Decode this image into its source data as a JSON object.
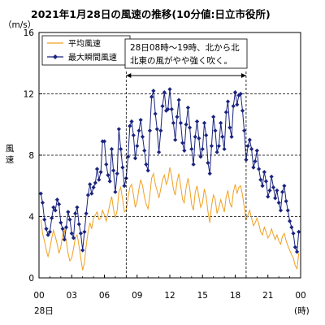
{
  "chart_data": {
    "type": "line",
    "title": "2021年1月28日の風速の推移(10分値:日立市役所)",
    "y_unit": "（m/s）",
    "ylabel": "風速",
    "x_unit": "(時)",
    "date_label": "28日",
    "ylim": [
      0,
      16
    ],
    "y_ticks": [
      0,
      4,
      8,
      12,
      16
    ],
    "x_range_hours": [
      0,
      24
    ],
    "x_ticks": [
      {
        "label": "00",
        "hour": 0
      },
      {
        "label": "03",
        "hour": 3
      },
      {
        "label": "06",
        "hour": 6
      },
      {
        "label": "09",
        "hour": 9
      },
      {
        "label": "12",
        "hour": 12
      },
      {
        "label": "15",
        "hour": 15
      },
      {
        "label": "18",
        "hour": 18
      },
      {
        "label": "21",
        "hour": 21
      },
      {
        "label": "00",
        "hour": 24
      }
    ],
    "gridlines_y": [
      4,
      8,
      12
    ],
    "grid_style": "dashed",
    "legend_position": "top-left",
    "series": [
      {
        "name": "平均風速",
        "color": "#f0a020",
        "marker": "none",
        "x": [
          0.17,
          0.33,
          0.5,
          0.67,
          0.83,
          1.0,
          1.17,
          1.33,
          1.5,
          1.67,
          1.83,
          2.0,
          2.17,
          2.33,
          2.5,
          2.67,
          2.83,
          3.0,
          3.17,
          3.33,
          3.5,
          3.67,
          3.83,
          4.0,
          4.17,
          4.33,
          4.5,
          4.67,
          4.83,
          5.0,
          5.17,
          5.33,
          5.5,
          5.67,
          5.83,
          6.0,
          6.17,
          6.33,
          6.5,
          6.67,
          6.83,
          7.0,
          7.17,
          7.33,
          7.5,
          7.67,
          7.83,
          8.0,
          8.17,
          8.33,
          8.5,
          8.67,
          8.83,
          9.0,
          9.17,
          9.33,
          9.5,
          9.67,
          9.83,
          10.0,
          10.17,
          10.33,
          10.5,
          10.67,
          10.83,
          11.0,
          11.17,
          11.33,
          11.5,
          11.67,
          11.83,
          12.0,
          12.17,
          12.33,
          12.5,
          12.67,
          12.83,
          13.0,
          13.17,
          13.33,
          13.5,
          13.67,
          13.83,
          14.0,
          14.17,
          14.33,
          14.5,
          14.67,
          14.83,
          15.0,
          15.17,
          15.33,
          15.5,
          15.67,
          15.83,
          16.0,
          16.17,
          16.33,
          16.5,
          16.67,
          16.83,
          17.0,
          17.17,
          17.33,
          17.5,
          17.67,
          17.83,
          18.0,
          18.17,
          18.33,
          18.5,
          18.67,
          18.83,
          19.0,
          19.17,
          19.33,
          19.5,
          19.67,
          19.83,
          20.0,
          20.17,
          20.33,
          20.5,
          20.67,
          20.83,
          21.0,
          21.17,
          21.33,
          21.5,
          21.67,
          21.83,
          22.0,
          22.17,
          22.33,
          22.5,
          22.67,
          22.83,
          23.0,
          23.17,
          23.33,
          23.5,
          23.67,
          23.83
        ],
        "values": [
          3.8,
          2.9,
          2.4,
          1.8,
          1.4,
          1.9,
          2.6,
          3.1,
          2.7,
          2.2,
          1.6,
          2.0,
          2.8,
          3.1,
          2.4,
          1.6,
          1.1,
          1.3,
          1.9,
          2.6,
          2.8,
          2.1,
          1.3,
          0.5,
          1.0,
          2.1,
          3.0,
          3.6,
          3.2,
          3.9,
          4.1,
          4.3,
          3.8,
          3.9,
          4.4,
          4.1,
          3.7,
          4.2,
          4.8,
          5.3,
          4.5,
          3.9,
          4.4,
          5.6,
          5.9,
          5.1,
          4.3,
          4.4,
          5.2,
          5.9,
          6.1,
          5.4,
          4.6,
          5.0,
          5.8,
          6.4,
          6.0,
          5.3,
          4.8,
          4.5,
          5.4,
          6.5,
          6.8,
          6.1,
          5.7,
          5.2,
          5.8,
          6.4,
          6.7,
          6.1,
          6.4,
          7.2,
          6.6,
          5.8,
          5.4,
          6.3,
          6.8,
          6.0,
          5.1,
          4.9,
          5.9,
          6.5,
          5.8,
          4.8,
          4.4,
          5.6,
          6.0,
          5.3,
          4.6,
          4.9,
          5.8,
          5.3,
          4.3,
          3.6,
          4.7,
          5.4,
          5.1,
          4.2,
          4.6,
          5.1,
          4.7,
          4.3,
          5.3,
          5.7,
          4.9,
          4.6,
          5.6,
          6.1,
          5.5,
          5.9,
          6.0,
          5.4,
          4.6,
          3.8,
          4.1,
          4.4,
          3.9,
          3.4,
          3.6,
          3.9,
          3.5,
          3.0,
          2.8,
          3.3,
          3.0,
          2.6,
          2.8,
          3.2,
          2.8,
          2.5,
          2.8,
          2.4,
          2.2,
          2.7,
          2.9,
          2.4,
          2.1,
          1.8,
          1.5,
          1.3,
          0.8,
          0.6,
          1.6
        ]
      },
      {
        "name": "最大瞬間風速",
        "color": "#1a237e",
        "marker": "diamond",
        "x": [
          0.17,
          0.33,
          0.5,
          0.67,
          0.83,
          1.0,
          1.17,
          1.33,
          1.5,
          1.67,
          1.83,
          2.0,
          2.17,
          2.33,
          2.5,
          2.67,
          2.83,
          3.0,
          3.17,
          3.33,
          3.5,
          3.67,
          3.83,
          4.0,
          4.17,
          4.33,
          4.5,
          4.67,
          4.83,
          5.0,
          5.17,
          5.33,
          5.5,
          5.67,
          5.83,
          6.0,
          6.17,
          6.33,
          6.5,
          6.67,
          6.83,
          7.0,
          7.17,
          7.33,
          7.5,
          7.67,
          7.83,
          8.0,
          8.17,
          8.33,
          8.5,
          8.67,
          8.83,
          9.0,
          9.17,
          9.33,
          9.5,
          9.67,
          9.83,
          10.0,
          10.17,
          10.33,
          10.5,
          10.67,
          10.83,
          11.0,
          11.17,
          11.33,
          11.5,
          11.67,
          11.83,
          12.0,
          12.17,
          12.33,
          12.5,
          12.67,
          12.83,
          13.0,
          13.17,
          13.33,
          13.5,
          13.67,
          13.83,
          14.0,
          14.17,
          14.33,
          14.5,
          14.67,
          14.83,
          15.0,
          15.17,
          15.33,
          15.5,
          15.67,
          15.83,
          16.0,
          16.17,
          16.33,
          16.5,
          16.67,
          16.83,
          17.0,
          17.17,
          17.33,
          17.5,
          17.67,
          17.83,
          18.0,
          18.17,
          18.33,
          18.5,
          18.67,
          18.83,
          19.0,
          19.17,
          19.33,
          19.5,
          19.67,
          19.83,
          20.0,
          20.17,
          20.33,
          20.5,
          20.67,
          20.83,
          21.0,
          21.17,
          21.33,
          21.5,
          21.67,
          21.83,
          22.0,
          22.17,
          22.33,
          22.5,
          22.67,
          22.83,
          23.0,
          23.17,
          23.33,
          23.5,
          23.67,
          23.83
        ],
        "values": [
          5.5,
          4.9,
          3.8,
          3.2,
          2.8,
          3.0,
          3.9,
          4.6,
          4.4,
          5.1,
          4.8,
          3.6,
          3.2,
          2.5,
          3.3,
          4.3,
          3.8,
          2.9,
          2.6,
          4.2,
          4.6,
          3.5,
          2.9,
          1.8,
          3.0,
          4.2,
          5.4,
          6.1,
          5.5,
          5.9,
          6.2,
          7.1,
          6.4,
          6.9,
          8.9,
          8.9,
          7.4,
          6.7,
          6.3,
          8.4,
          7.0,
          5.6,
          6.8,
          9.7,
          8.4,
          7.2,
          6.0,
          6.5,
          7.9,
          9.9,
          10.2,
          9.3,
          7.8,
          8.6,
          9.6,
          10.3,
          9.2,
          8.3,
          7.4,
          7.0,
          9.6,
          11.8,
          12.2,
          10.7,
          9.7,
          8.2,
          9.6,
          11.2,
          12.1,
          10.9,
          11.0,
          12.3,
          11.0,
          10.1,
          9.0,
          10.5,
          11.6,
          10.1,
          8.8,
          8.3,
          10.0,
          11.1,
          9.8,
          8.4,
          7.4,
          9.2,
          10.2,
          9.1,
          7.9,
          8.4,
          10.1,
          9.3,
          7.5,
          6.8,
          8.6,
          10.5,
          9.6,
          8.2,
          8.6,
          10.1,
          9.2,
          8.4,
          10.8,
          11.5,
          9.8,
          9.2,
          11.2,
          12.1,
          11.3,
          11.9,
          12.0,
          10.9,
          9.6,
          7.7,
          8.6,
          9.0,
          8.4,
          7.2,
          7.6,
          8.3,
          7.1,
          6.4,
          6.0,
          6.9,
          6.3,
          5.3,
          5.7,
          6.6,
          5.9,
          5.2,
          5.7,
          4.9,
          4.4,
          5.6,
          6.0,
          5.0,
          4.4,
          3.7,
          3.3,
          2.9,
          2.0,
          1.7,
          3.0
        ]
      }
    ],
    "annotation": {
      "lines": [
        "28日08時〜19時、北から北",
        "北東の風がやや強く吹く。"
      ],
      "start_hour": 8,
      "end_hour": 19
    }
  }
}
